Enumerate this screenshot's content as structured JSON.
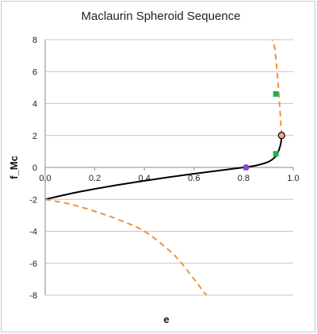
{
  "chart_data": {
    "type": "line",
    "title": "Maclaurin Spheroid Sequence",
    "xlabel": "e",
    "ylabel": "f_Mc",
    "xlim": [
      0,
      1
    ],
    "ylim": [
      -8,
      8
    ],
    "x_ticks": [
      "0.0",
      "0.2",
      "0.4",
      "0.6",
      "0.8",
      "1.0"
    ],
    "y_ticks": [
      "8",
      "6",
      "4",
      "2",
      "0",
      "-2",
      "-4",
      "-6",
      "-8"
    ],
    "grid": "horizontal",
    "legend": "none",
    "series": [
      {
        "style": "solid",
        "color": "#000000",
        "x": [
          0.0,
          0.1,
          0.2,
          0.3,
          0.4,
          0.5,
          0.6,
          0.7,
          0.75,
          0.8,
          0.85,
          0.9,
          0.93,
          0.94,
          0.95,
          0.953
        ],
        "y": [
          -2.0,
          -1.65,
          -1.35,
          -1.08,
          -0.84,
          -0.61,
          -0.4,
          -0.2,
          -0.1,
          0.0,
          0.12,
          0.35,
          0.7,
          1.0,
          1.5,
          2.0
        ]
      },
      {
        "style": "dashed",
        "color": "#f0913a",
        "x": [
          0.953,
          0.945,
          0.935,
          0.925,
          0.915
        ],
        "y": [
          2.0,
          4.0,
          6.0,
          7.5,
          8.0
        ]
      },
      {
        "style": "dashed",
        "color": "#f0913a",
        "x": [
          0.0,
          0.1,
          0.2,
          0.3,
          0.4,
          0.5,
          0.55,
          0.6,
          0.65
        ],
        "y": [
          -2.0,
          -2.3,
          -2.75,
          -3.3,
          -4.0,
          -5.2,
          -6.0,
          -7.0,
          -8.0
        ]
      }
    ],
    "markers": [
      {
        "x": 0.81,
        "y": 0.0,
        "shape": "circle",
        "color": "#8e44c9"
      },
      {
        "x": 0.953,
        "y": 2.0,
        "shape": "circle",
        "color": "#f4a48c"
      },
      {
        "x": 0.93,
        "y": 0.85,
        "shape": "square",
        "color": "#22b14c"
      },
      {
        "x": 0.93,
        "y": 4.6,
        "shape": "square",
        "color": "#22b14c"
      }
    ]
  }
}
